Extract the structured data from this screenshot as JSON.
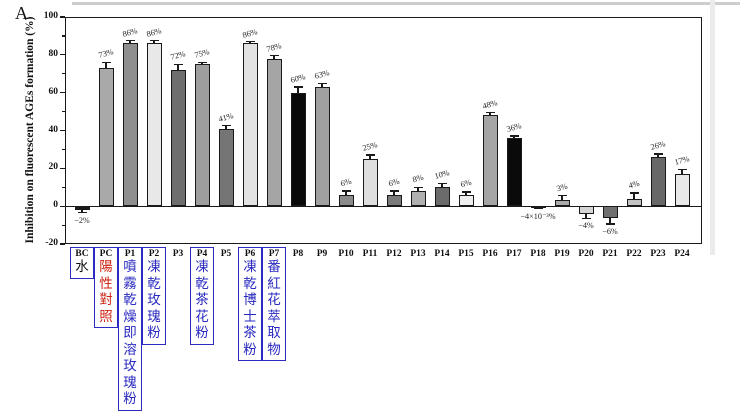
{
  "panel_label": "A",
  "y_axis": {
    "title": "Inhibition on fluorescent AGEs formation (%)",
    "major_ticks": [
      100,
      80,
      60,
      40,
      20,
      0,
      -20
    ],
    "minor_ticks": [
      90,
      70,
      50,
      30,
      10,
      -10
    ]
  },
  "chart_data": {
    "type": "bar",
    "title": "",
    "xlabel": "",
    "ylabel": "Inhibition on fluorescent AGEs formation (%)",
    "ylim": [
      -20,
      100
    ],
    "grid": false,
    "legend": null,
    "categories": [
      "BC",
      "PC",
      "P1",
      "P2",
      "P3",
      "P4",
      "P5",
      "P6",
      "P7",
      "P8",
      "P9",
      "P10",
      "P11",
      "P12",
      "P13",
      "P14",
      "P15",
      "P16",
      "P17",
      "P18",
      "P19",
      "P20",
      "P21",
      "P22",
      "P23",
      "P24"
    ],
    "values": [
      -2,
      73,
      86,
      86,
      72,
      75,
      41,
      86,
      78,
      60,
      63,
      6,
      25,
      6,
      8,
      10,
      6,
      48,
      36,
      -0.004,
      3,
      -4,
      -6,
      4,
      26,
      17
    ],
    "value_labels": [
      "−2%",
      "73%",
      "86%",
      "86%",
      "72%",
      "75%",
      "41%",
      "86%",
      "78%",
      "60%",
      "63%",
      "6%",
      "25%",
      "6%",
      "8%",
      "10%",
      "6%",
      "48%",
      "36%",
      "−4×10⁻³%",
      "3%",
      "−4%",
      "−6%",
      "4%",
      "26%",
      "17%"
    ],
    "errors": [
      1.5,
      3,
      1.5,
      1.5,
      3,
      1,
      1.5,
      1,
      1.5,
      3,
      2,
      2,
      2,
      2,
      2,
      2,
      1.5,
      1.5,
      1,
      1,
      2.5,
      2.5,
      3.5,
      3,
      1.5,
      2.5
    ],
    "bar_colors": [
      "#1a1a1a",
      "#a9a9a9",
      "#8f8f8f",
      "#e8e8e8",
      "#6e6e6e",
      "#9e9e9e",
      "#757575",
      "#e2e2e2",
      "#a5a5a5",
      "#0a0a0a",
      "#a0a0a0",
      "#8b8b8b",
      "#dedede",
      "#7a7a7a",
      "#b0b0b0",
      "#6b6b6b",
      "#efefef",
      "#a5a5a5",
      "#0a0a0a",
      "#1a1a1a",
      "#aaaaaa",
      "#d5d5d5",
      "#707070",
      "#c2c2c2",
      "#686868",
      "#e8e8e8"
    ]
  },
  "annotations": [
    {
      "category": "BC",
      "text": "水",
      "color_key": "annotation_black"
    },
    {
      "category": "PC",
      "text": "陽性對照",
      "color_key": "annotation_red"
    },
    {
      "category": "P1",
      "text": "噴霧乾燥即溶玫瑰粉",
      "color_key": "annotation_blue"
    },
    {
      "category": "P2",
      "text": "凍乾玫瑰粉",
      "color_key": "annotation_blue"
    },
    {
      "category": "P4",
      "text": "凍乾茶花粉",
      "color_key": "annotation_blue"
    },
    {
      "category": "P6",
      "text": "凍乾博士茶粉",
      "color_key": "annotation_blue"
    },
    {
      "category": "P7",
      "text": "番紅花萃取物",
      "color_key": "annotation_blue"
    }
  ],
  "colors": {
    "annotation_black": "#111111",
    "annotation_red": "#cc2211",
    "annotation_blue": "#2a2ac0",
    "box_border": "#2b2bc4",
    "bar_edge": "#1a1a1a"
  }
}
